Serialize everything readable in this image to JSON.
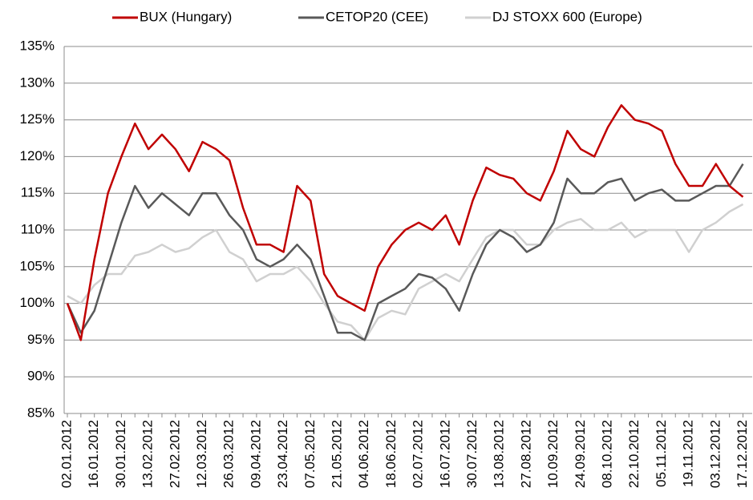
{
  "chart_data": {
    "type": "line",
    "categories": [
      "02.01.2012",
      null,
      "16.01.2012",
      null,
      "30.01.2012",
      null,
      "13.02.2012",
      null,
      "27.02.2012",
      null,
      "12.03.2012",
      null,
      "26.03.2012",
      null,
      "09.04.2012",
      null,
      "23.04.2012",
      null,
      "07.05.2012",
      null,
      "21.05.2012",
      null,
      "04.06.2012",
      null,
      "18.06.2012",
      null,
      "02.07.2012",
      null,
      "16.07.2012",
      null,
      "30.07.2012",
      null,
      "13.08.2012",
      null,
      "27.08.2012",
      null,
      "10.09.2012",
      null,
      "24.09.2012",
      null,
      "08.10.2012",
      null,
      "22.10.2012",
      null,
      "05.11.2012",
      null,
      "19.11.2012",
      null,
      "03.12.2012",
      null,
      "17.12.2012"
    ],
    "series": [
      {
        "name": "BUX (Hungary)",
        "color": "#c00000",
        "values": [
          100,
          95,
          106,
          115,
          120,
          124.5,
          121,
          123,
          121,
          118,
          122,
          121,
          119.5,
          113,
          108,
          108,
          107,
          116,
          114,
          104,
          101,
          100,
          99,
          105,
          108,
          110,
          111,
          110,
          112,
          108,
          114,
          118.5,
          117.5,
          117,
          115,
          114,
          118,
          123.5,
          121,
          120,
          124,
          127,
          125,
          124.5,
          123.5,
          119,
          116,
          116,
          119,
          116,
          114.5
        ]
      },
      {
        "name": "CETOP20 (CEE)",
        "color": "#595959",
        "values": [
          100,
          96,
          99,
          105,
          111,
          116,
          113,
          115,
          113.5,
          112,
          115,
          115,
          112,
          110,
          106,
          105,
          106,
          108,
          106,
          101,
          96,
          96,
          95,
          100,
          101,
          102,
          104,
          103.5,
          102,
          99,
          104,
          108,
          110,
          109,
          107,
          108,
          111,
          117,
          115,
          115,
          116.5,
          117,
          114,
          115,
          115.5,
          114,
          114,
          115,
          116,
          116,
          119
        ]
      },
      {
        "name": "DJ STOXX 600 (Europe)",
        "color": "#d0d0d0",
        "values": [
          101,
          100,
          102.5,
          104,
          104,
          106.5,
          107,
          108,
          107,
          107.5,
          109,
          110,
          107,
          106,
          103,
          104,
          104,
          105,
          103,
          100,
          97.5,
          97,
          95,
          98,
          99,
          98.5,
          102,
          103,
          104,
          103,
          106,
          109,
          110,
          110,
          108,
          108,
          110,
          111,
          111.5,
          110,
          110,
          111,
          109,
          110,
          110,
          110,
          107,
          110,
          111,
          112.5,
          113.5
        ]
      }
    ],
    "ylim": [
      85,
      135
    ],
    "yticks": [
      {
        "value": 85,
        "label": "85%"
      },
      {
        "value": 90,
        "label": "90%"
      },
      {
        "value": 95,
        "label": "95%"
      },
      {
        "value": 100,
        "label": "100%"
      },
      {
        "value": 105,
        "label": "105%"
      },
      {
        "value": 110,
        "label": "110%"
      },
      {
        "value": 115,
        "label": "115%"
      },
      {
        "value": 120,
        "label": "120%"
      },
      {
        "value": 125,
        "label": "125%"
      },
      {
        "value": 130,
        "label": "130%"
      },
      {
        "value": 135,
        "label": "135%"
      }
    ],
    "grid": true,
    "legend": "top"
  }
}
